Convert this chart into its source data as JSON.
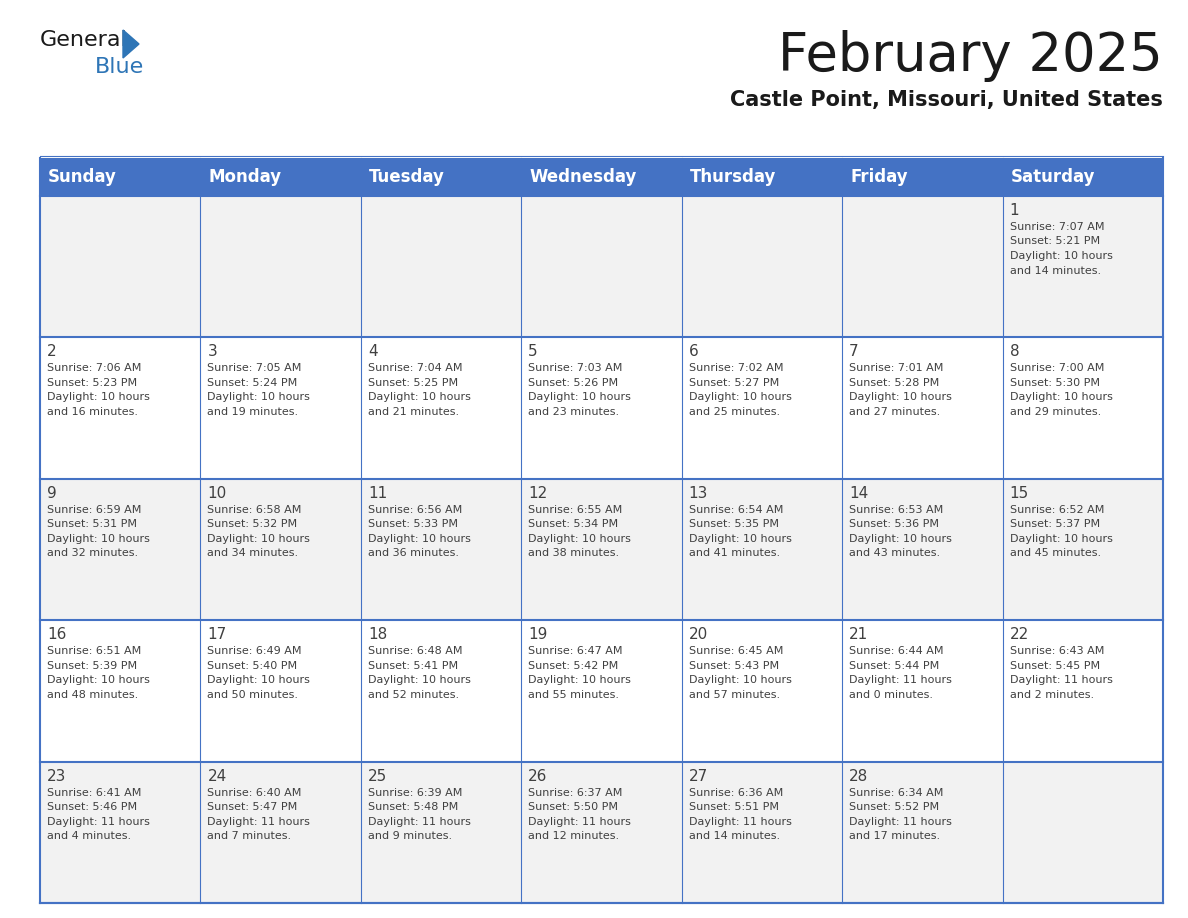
{
  "title": "February 2025",
  "subtitle": "Castle Point, Missouri, United States",
  "days_of_week": [
    "Sunday",
    "Monday",
    "Tuesday",
    "Wednesday",
    "Thursday",
    "Friday",
    "Saturday"
  ],
  "header_bg": "#4472C4",
  "header_text": "#FFFFFF",
  "cell_bg_odd": "#F2F2F2",
  "cell_bg_even": "#FFFFFF",
  "border_color": "#4472C4",
  "text_color": "#404040",
  "title_color": "#1a1a1a",
  "subtitle_color": "#1a1a1a",
  "logo_general_color": "#1a1a1a",
  "logo_blue_color": "#2E75B6",
  "weeks": [
    [
      {
        "day": null,
        "sunrise": null,
        "sunset": null,
        "daylight": null
      },
      {
        "day": null,
        "sunrise": null,
        "sunset": null,
        "daylight": null
      },
      {
        "day": null,
        "sunrise": null,
        "sunset": null,
        "daylight": null
      },
      {
        "day": null,
        "sunrise": null,
        "sunset": null,
        "daylight": null
      },
      {
        "day": null,
        "sunrise": null,
        "sunset": null,
        "daylight": null
      },
      {
        "day": null,
        "sunrise": null,
        "sunset": null,
        "daylight": null
      },
      {
        "day": 1,
        "sunrise": "7:07 AM",
        "sunset": "5:21 PM",
        "daylight": "10 hours\nand 14 minutes."
      }
    ],
    [
      {
        "day": 2,
        "sunrise": "7:06 AM",
        "sunset": "5:23 PM",
        "daylight": "10 hours\nand 16 minutes."
      },
      {
        "day": 3,
        "sunrise": "7:05 AM",
        "sunset": "5:24 PM",
        "daylight": "10 hours\nand 19 minutes."
      },
      {
        "day": 4,
        "sunrise": "7:04 AM",
        "sunset": "5:25 PM",
        "daylight": "10 hours\nand 21 minutes."
      },
      {
        "day": 5,
        "sunrise": "7:03 AM",
        "sunset": "5:26 PM",
        "daylight": "10 hours\nand 23 minutes."
      },
      {
        "day": 6,
        "sunrise": "7:02 AM",
        "sunset": "5:27 PM",
        "daylight": "10 hours\nand 25 minutes."
      },
      {
        "day": 7,
        "sunrise": "7:01 AM",
        "sunset": "5:28 PM",
        "daylight": "10 hours\nand 27 minutes."
      },
      {
        "day": 8,
        "sunrise": "7:00 AM",
        "sunset": "5:30 PM",
        "daylight": "10 hours\nand 29 minutes."
      }
    ],
    [
      {
        "day": 9,
        "sunrise": "6:59 AM",
        "sunset": "5:31 PM",
        "daylight": "10 hours\nand 32 minutes."
      },
      {
        "day": 10,
        "sunrise": "6:58 AM",
        "sunset": "5:32 PM",
        "daylight": "10 hours\nand 34 minutes."
      },
      {
        "day": 11,
        "sunrise": "6:56 AM",
        "sunset": "5:33 PM",
        "daylight": "10 hours\nand 36 minutes."
      },
      {
        "day": 12,
        "sunrise": "6:55 AM",
        "sunset": "5:34 PM",
        "daylight": "10 hours\nand 38 minutes."
      },
      {
        "day": 13,
        "sunrise": "6:54 AM",
        "sunset": "5:35 PM",
        "daylight": "10 hours\nand 41 minutes."
      },
      {
        "day": 14,
        "sunrise": "6:53 AM",
        "sunset": "5:36 PM",
        "daylight": "10 hours\nand 43 minutes."
      },
      {
        "day": 15,
        "sunrise": "6:52 AM",
        "sunset": "5:37 PM",
        "daylight": "10 hours\nand 45 minutes."
      }
    ],
    [
      {
        "day": 16,
        "sunrise": "6:51 AM",
        "sunset": "5:39 PM",
        "daylight": "10 hours\nand 48 minutes."
      },
      {
        "day": 17,
        "sunrise": "6:49 AM",
        "sunset": "5:40 PM",
        "daylight": "10 hours\nand 50 minutes."
      },
      {
        "day": 18,
        "sunrise": "6:48 AM",
        "sunset": "5:41 PM",
        "daylight": "10 hours\nand 52 minutes."
      },
      {
        "day": 19,
        "sunrise": "6:47 AM",
        "sunset": "5:42 PM",
        "daylight": "10 hours\nand 55 minutes."
      },
      {
        "day": 20,
        "sunrise": "6:45 AM",
        "sunset": "5:43 PM",
        "daylight": "10 hours\nand 57 minutes."
      },
      {
        "day": 21,
        "sunrise": "6:44 AM",
        "sunset": "5:44 PM",
        "daylight": "11 hours\nand 0 minutes."
      },
      {
        "day": 22,
        "sunrise": "6:43 AM",
        "sunset": "5:45 PM",
        "daylight": "11 hours\nand 2 minutes."
      }
    ],
    [
      {
        "day": 23,
        "sunrise": "6:41 AM",
        "sunset": "5:46 PM",
        "daylight": "11 hours\nand 4 minutes."
      },
      {
        "day": 24,
        "sunrise": "6:40 AM",
        "sunset": "5:47 PM",
        "daylight": "11 hours\nand 7 minutes."
      },
      {
        "day": 25,
        "sunrise": "6:39 AM",
        "sunset": "5:48 PM",
        "daylight": "11 hours\nand 9 minutes."
      },
      {
        "day": 26,
        "sunrise": "6:37 AM",
        "sunset": "5:50 PM",
        "daylight": "11 hours\nand 12 minutes."
      },
      {
        "day": 27,
        "sunrise": "6:36 AM",
        "sunset": "5:51 PM",
        "daylight": "11 hours\nand 14 minutes."
      },
      {
        "day": 28,
        "sunrise": "6:34 AM",
        "sunset": "5:52 PM",
        "daylight": "11 hours\nand 17 minutes."
      },
      {
        "day": null,
        "sunrise": null,
        "sunset": null,
        "daylight": null
      }
    ]
  ],
  "fig_width": 11.88,
  "fig_height": 9.18,
  "dpi": 100
}
